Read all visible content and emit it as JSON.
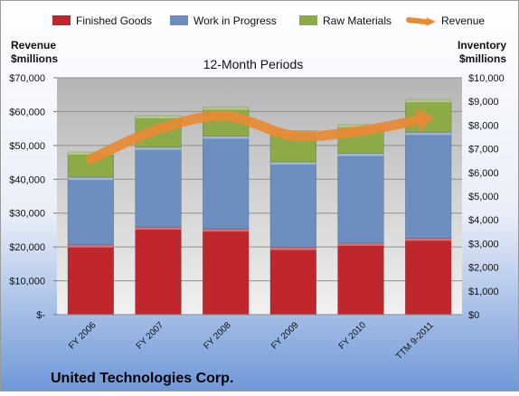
{
  "chart_data": {
    "type": "bar",
    "subtitle": "12-Month Periods",
    "company": "United Technologies Corp.",
    "categories": [
      "FY 2006",
      "FY 2007",
      "FY 2008",
      "FY 2009",
      "FY 2010",
      "TTM 9-2011"
    ],
    "left_axis": {
      "label_line1": "Revenue",
      "label_line2": "$millions",
      "ylim": [
        0,
        70000
      ],
      "tick_values": [
        0,
        10000,
        20000,
        30000,
        40000,
        50000,
        60000,
        70000
      ],
      "tick_labels": [
        "$-",
        "$10,000",
        "$20,000",
        "$30,000",
        "$40,000",
        "$50,000",
        "$60,000",
        "$70,000"
      ]
    },
    "right_axis": {
      "label_line1": "Inventory",
      "label_line2": "$millions",
      "ylim": [
        0,
        10000
      ],
      "tick_values": [
        0,
        1000,
        2000,
        3000,
        4000,
        5000,
        6000,
        7000,
        8000,
        9000,
        10000
      ],
      "tick_labels": [
        "$0",
        "$1,000",
        "$2,000",
        "$3,000",
        "$4,000",
        "$5,000",
        "$6,000",
        "$7,000",
        "$8,000",
        "$9,000",
        "$10,000"
      ]
    },
    "grid": true,
    "legend_position": "top",
    "series": [
      {
        "name": "Finished Goods",
        "kind": "bar",
        "axis": "right",
        "color": "#c0272d",
        "values": [
          2950,
          3700,
          3620,
          2840,
          3020,
          3230
        ]
      },
      {
        "name": "Work in Progress",
        "kind": "bar",
        "axis": "right",
        "color": "#6d8fbf",
        "values": [
          2850,
          3370,
          3920,
          3610,
          3790,
          4470
        ]
      },
      {
        "name": "Raw Materials",
        "kind": "bar",
        "axis": "right",
        "color": "#8caa48",
        "values": [
          1070,
          1330,
          1220,
          1320,
          1210,
          1380
        ]
      },
      {
        "name": "Revenue",
        "kind": "line",
        "axis": "left",
        "color": "#e98a35",
        "values": [
          46000,
          54800,
          58700,
          52900,
          54300,
          58100
        ]
      }
    ]
  }
}
